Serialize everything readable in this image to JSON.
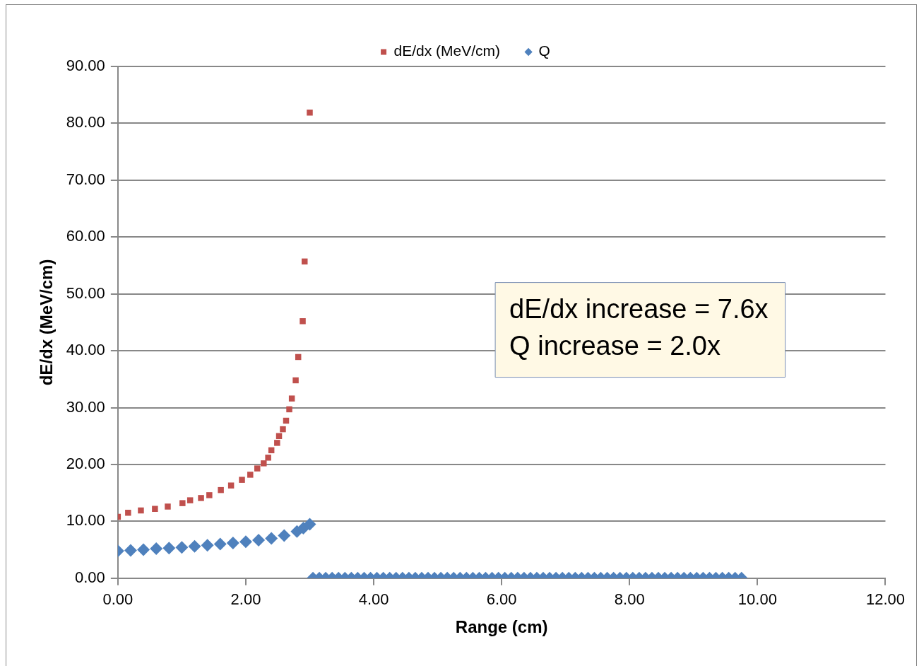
{
  "chart_data": {
    "type": "scatter",
    "xlabel": "Range (cm)",
    "ylabel": "dE/dx (MeV/cm)",
    "xlim": [
      0,
      12
    ],
    "ylim": [
      0,
      90
    ],
    "xticks": [
      {
        "value": 0,
        "label": "0.00"
      },
      {
        "value": 2,
        "label": "2.00"
      },
      {
        "value": 4,
        "label": "4.00"
      },
      {
        "value": 6,
        "label": "6.00"
      },
      {
        "value": 8,
        "label": "8.00"
      },
      {
        "value": 10,
        "label": "10.00"
      },
      {
        "value": 12,
        "label": "12.00"
      }
    ],
    "yticks": [
      {
        "value": 0,
        "label": "0.00"
      },
      {
        "value": 10,
        "label": "10.00"
      },
      {
        "value": 20,
        "label": "20.00"
      },
      {
        "value": 30,
        "label": "30.00"
      },
      {
        "value": 40,
        "label": "40.00"
      },
      {
        "value": 50,
        "label": "50.00"
      },
      {
        "value": 60,
        "label": "60.00"
      },
      {
        "value": 70,
        "label": "70.00"
      },
      {
        "value": 80,
        "label": "80.00"
      },
      {
        "value": 90,
        "label": "90.00"
      }
    ],
    "grid": "y",
    "legend": "top",
    "annotations": [
      "dE/dx increase = 7.6x\nQ increase = 2.0x"
    ],
    "series": [
      {
        "name": "dE/dx (MeV/cm)",
        "color": "#c0504d",
        "marker": "square",
        "x": [
          0.0,
          0.16,
          0.36,
          0.58,
          0.78,
          1.01,
          1.13,
          1.3,
          1.43,
          1.61,
          1.77,
          1.94,
          2.07,
          2.18,
          2.28,
          2.35,
          2.4,
          2.49,
          2.52,
          2.58,
          2.63,
          2.68,
          2.72,
          2.78,
          2.82,
          2.89,
          2.92,
          3.0
        ],
        "values": [
          10.8,
          11.5,
          11.9,
          12.2,
          12.6,
          13.2,
          13.7,
          14.1,
          14.6,
          15.5,
          16.3,
          17.3,
          18.2,
          19.3,
          20.2,
          21.2,
          22.5,
          23.8,
          25.0,
          26.2,
          27.7,
          29.7,
          31.6,
          34.8,
          38.9,
          45.2,
          55.7,
          81.9
        ]
      },
      {
        "name": "Q",
        "color": "#4f81bd",
        "marker": "diamond",
        "x": [
          0,
          0.2,
          0.4,
          0.6,
          0.8,
          1.0,
          1.2,
          1.4,
          1.6,
          1.8,
          2.0,
          2.2,
          2.4,
          2.6,
          2.8,
          2.9,
          3.0,
          3.05,
          3.15,
          3.25,
          3.35,
          3.45,
          3.55,
          3.65,
          3.75,
          3.85,
          3.95,
          4.05,
          4.15,
          4.25,
          4.35,
          4.45,
          4.55,
          4.65,
          4.75,
          4.85,
          4.95,
          5.05,
          5.15,
          5.25,
          5.35,
          5.45,
          5.55,
          5.65,
          5.75,
          5.85,
          5.95,
          6.05,
          6.15,
          6.25,
          6.35,
          6.45,
          6.55,
          6.65,
          6.75,
          6.85,
          6.95,
          7.05,
          7.15,
          7.25,
          7.35,
          7.45,
          7.55,
          7.65,
          7.75,
          7.85,
          7.95,
          8.05,
          8.15,
          8.25,
          8.35,
          8.45,
          8.55,
          8.65,
          8.75,
          8.85,
          8.95,
          9.05,
          9.15,
          9.25,
          9.35,
          9.45,
          9.55,
          9.65,
          9.75
        ],
        "values": [
          4.8,
          4.9,
          5.0,
          5.2,
          5.3,
          5.4,
          5.6,
          5.8,
          6.0,
          6.2,
          6.4,
          6.7,
          7.0,
          7.5,
          8.2,
          8.8,
          9.5,
          0,
          0,
          0,
          0,
          0,
          0,
          0,
          0,
          0,
          0,
          0,
          0,
          0,
          0,
          0,
          0,
          0,
          0,
          0,
          0,
          0,
          0,
          0,
          0,
          0,
          0,
          0,
          0,
          0,
          0,
          0,
          0,
          0,
          0,
          0,
          0,
          0,
          0,
          0,
          0,
          0,
          0,
          0,
          0,
          0,
          0,
          0,
          0,
          0,
          0,
          0,
          0,
          0,
          0,
          0,
          0,
          0,
          0,
          0,
          0,
          0,
          0,
          0,
          0,
          0,
          0,
          0,
          0
        ]
      }
    ]
  }
}
